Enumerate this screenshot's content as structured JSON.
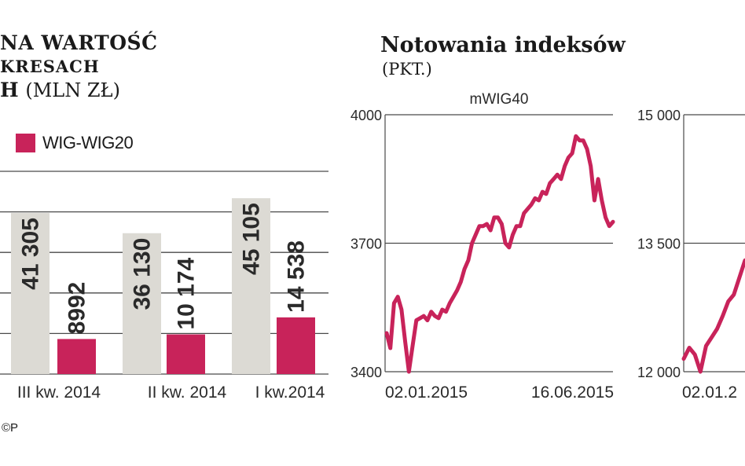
{
  "left_panel": {
    "title_lines": [
      "NA WARTOŚĆ",
      "KRESACH",
      "H"
    ],
    "title_unit": "(MLN ZŁ)",
    "legend_label": "WIG-WIG20",
    "source_note": "©P"
  },
  "right_panel": {
    "title": "Notowania indeksów",
    "unit": "(PKT.)"
  },
  "colors": {
    "accent": "#c8235a",
    "grey_bar": "#dcdad4",
    "gridline": "#4a4a4a"
  },
  "chart_data": [
    {
      "type": "bar",
      "categories": [
        "III kw. 2014",
        "II kw. 2014",
        "I kw.2014"
      ],
      "series": [
        {
          "values": [
            41305,
            36130,
            45105
          ],
          "labels": [
            "41 305",
            "36 130",
            "45 105"
          ],
          "color": "#dcdad4"
        },
        {
          "name": "WIG-WIG20",
          "values": [
            8992,
            10174,
            14538
          ],
          "labels": [
            "8992",
            "10 174",
            "14 538"
          ],
          "color": "#c8235a"
        }
      ],
      "ylim": [
        0,
        52000
      ],
      "grid": true
    },
    {
      "type": "line",
      "title": "mWIG40",
      "x_ticks": [
        "02.01.2015",
        "16.06.2015"
      ],
      "y_ticks": [
        "4000",
        "3700",
        "3400"
      ],
      "ylim": [
        3400,
        4000
      ],
      "grid": true,
      "color": "#c8235a",
      "y": [
        3490,
        3455,
        3560,
        3575,
        3545,
        3470,
        3400,
        3460,
        3520,
        3525,
        3530,
        3520,
        3540,
        3530,
        3525,
        3545,
        3540,
        3560,
        3575,
        3590,
        3610,
        3640,
        3660,
        3700,
        3720,
        3740,
        3740,
        3745,
        3730,
        3760,
        3760,
        3745,
        3700,
        3690,
        3720,
        3740,
        3740,
        3770,
        3780,
        3790,
        3805,
        3800,
        3820,
        3815,
        3840,
        3850,
        3860,
        3850,
        3880,
        3900,
        3910,
        3950,
        3940,
        3940,
        3920,
        3880,
        3800,
        3850,
        3800,
        3760,
        3740,
        3750
      ]
    },
    {
      "type": "line",
      "y_ticks": [
        "15 000",
        "13 500",
        "12 000"
      ],
      "x_ticks": [
        "02.01.2"
      ],
      "ylim": [
        12000,
        15000
      ],
      "grid": true,
      "color": "#c8235a",
      "y": [
        12150,
        12280,
        12200,
        12000,
        12300,
        12400,
        12500,
        12650,
        12820,
        12900,
        13100,
        13300
      ]
    }
  ]
}
